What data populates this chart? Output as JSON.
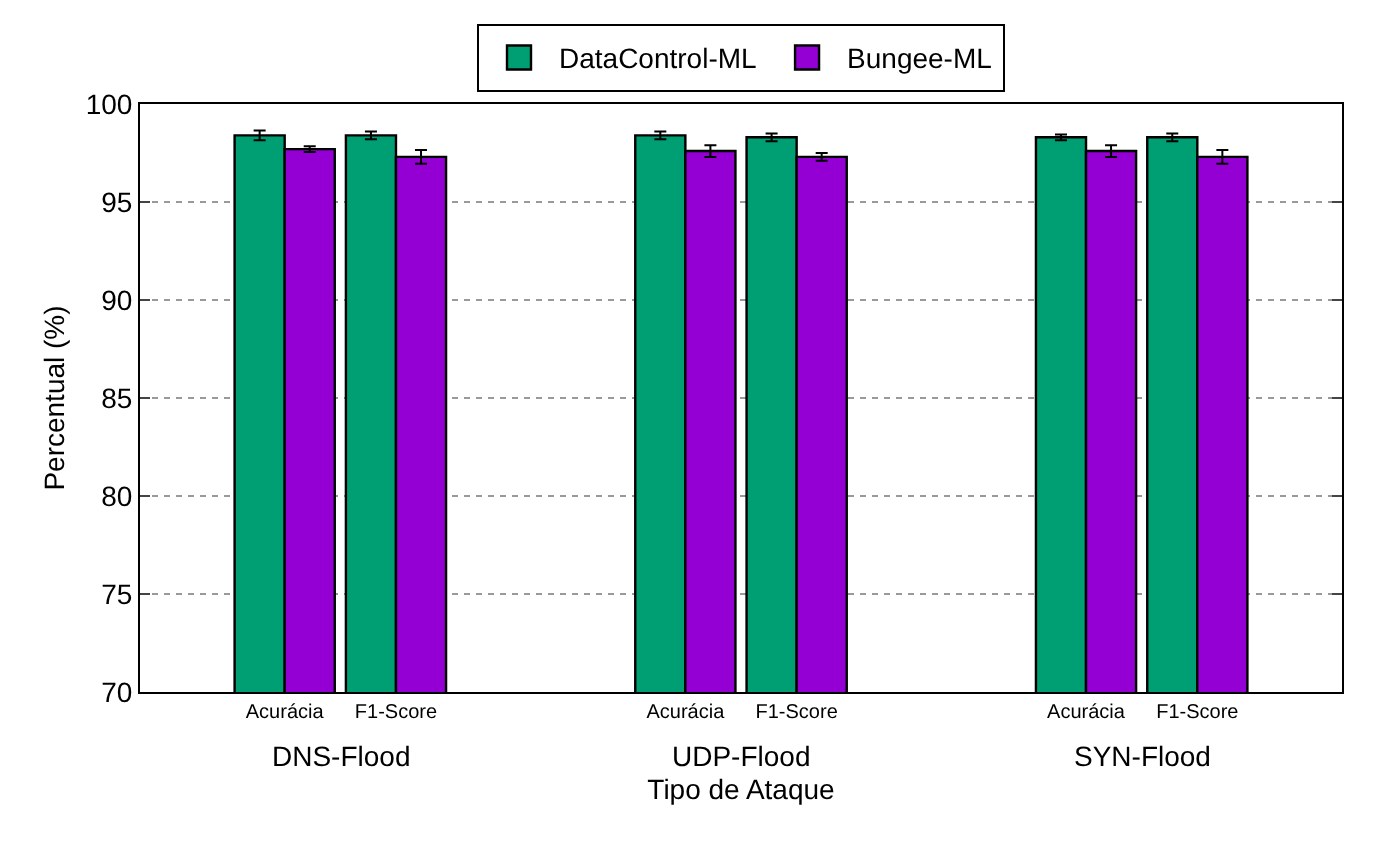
{
  "chart_data": {
    "type": "bar",
    "categories": [
      "Acurácia",
      "F1-Score",
      "Acurácia",
      "F1-Score",
      "Acurácia",
      "F1-Score"
    ],
    "xlabel": "Tipo de Ataque",
    "ylabel": "Percentual (%)",
    "annotations": [
      "DNS-Flood",
      "UDP-Flood",
      "SYN-Flood"
    ],
    "series": [
      {
        "name": "DataControl-ML",
        "color": "#009e73",
        "values": [
          98.4,
          98.4,
          98.4,
          98.3,
          98.3,
          98.3
        ],
        "errors": [
          0.25,
          0.2,
          0.2,
          0.2,
          0.15,
          0.2
        ]
      },
      {
        "name": "Bungee-ML",
        "color": "#9400d3",
        "values": [
          97.7,
          97.3,
          97.6,
          97.3,
          97.6,
          97.3
        ],
        "errors": [
          0.15,
          0.35,
          0.3,
          0.2,
          0.3,
          0.35
        ]
      }
    ],
    "ylim": [
      70,
      100
    ],
    "yticks": [
      70,
      75,
      80,
      85,
      90,
      95,
      100
    ],
    "grid": "y",
    "legend": "top"
  }
}
